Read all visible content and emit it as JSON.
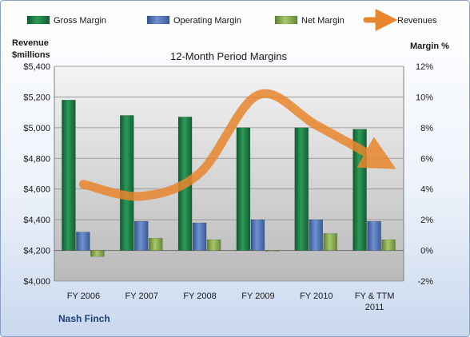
{
  "chart_data": {
    "type": "bar",
    "title": "12-Month Period Margins",
    "company": "Nash Finch",
    "categories": [
      [
        "FY 2006"
      ],
      [
        "FY 2007"
      ],
      [
        "FY 2008"
      ],
      [
        "FY 2009"
      ],
      [
        "FY 2010"
      ],
      [
        "FY & TTM",
        "2011"
      ]
    ],
    "y_left": {
      "label_line1": "Revenue",
      "label_line2": "$millions",
      "ticks": [
        "$4,000",
        "$4,200",
        "$4,400",
        "$4,600",
        "$4,800",
        "$5,000",
        "$5,200",
        "$5,400"
      ],
      "ylim": [
        4000,
        5400
      ]
    },
    "y_right": {
      "label": "Margin %",
      "ticks": [
        "-2%",
        "0%",
        "2%",
        "4%",
        "6%",
        "8%",
        "10%",
        "12%"
      ],
      "ylim": [
        -2,
        12
      ]
    },
    "series": [
      {
        "name": "Gross Margin",
        "axis": "right",
        "kind": "bar",
        "color": "#1e7d45",
        "values": [
          9.8,
          8.8,
          8.7,
          8.0,
          8.0,
          7.9
        ]
      },
      {
        "name": "Operating Margin",
        "axis": "right",
        "kind": "bar",
        "color": "#4f72b8",
        "values": [
          1.2,
          1.9,
          1.8,
          2.0,
          2.0,
          1.9
        ]
      },
      {
        "name": "Net Margin",
        "axis": "right",
        "kind": "bar",
        "color": "#8db04c",
        "values": [
          -0.4,
          0.8,
          0.7,
          -0.05,
          1.1,
          0.7
        ]
      },
      {
        "name": "Revenues",
        "axis": "left",
        "kind": "line",
        "color": "#e8862e",
        "values": [
          4631,
          4553,
          4705,
          5213,
          5016,
          4807
        ]
      }
    ],
    "grid": true,
    "legend": "top"
  }
}
